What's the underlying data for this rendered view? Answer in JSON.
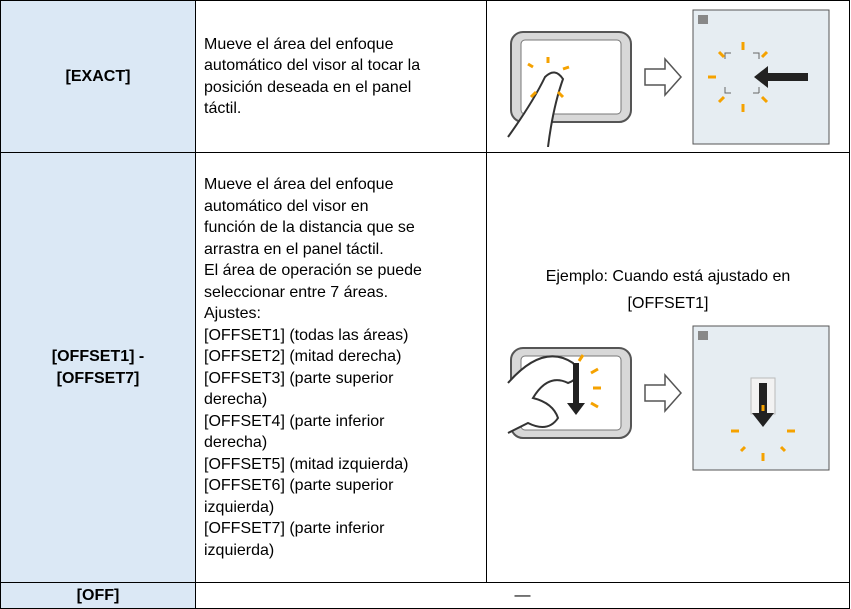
{
  "table": {
    "rows": [
      {
        "label": "[EXACT]",
        "description": [
          "Mueve el área del enfoque",
          "automático del visor al tocar la",
          "posición deseada en el panel",
          "táctil."
        ]
      },
      {
        "label": [
          "[OFFSET1] -",
          "[OFFSET7]"
        ],
        "description": [
          "Mueve el área del enfoque",
          "automático del visor en",
          "función de la distancia que se",
          "arrastra en el panel táctil.",
          "El área de operación se puede",
          "seleccionar entre 7 áreas.",
          "Ajustes:",
          "[OFFSET1] (todas las áreas)",
          "[OFFSET2] (mitad derecha)",
          "[OFFSET3] (parte superior",
          "derecha)",
          "[OFFSET4] (parte inferior",
          "derecha)",
          "[OFFSET5] (mitad izquierda)",
          "[OFFSET6] (parte superior",
          "izquierda)",
          "[OFFSET7] (parte inferior",
          "izquierda)"
        ],
        "caption": [
          "Ejemplo: Cuando está ajustado en",
          "[OFFSET1]"
        ]
      },
      {
        "label": "[OFF]",
        "description": "—"
      }
    ]
  }
}
